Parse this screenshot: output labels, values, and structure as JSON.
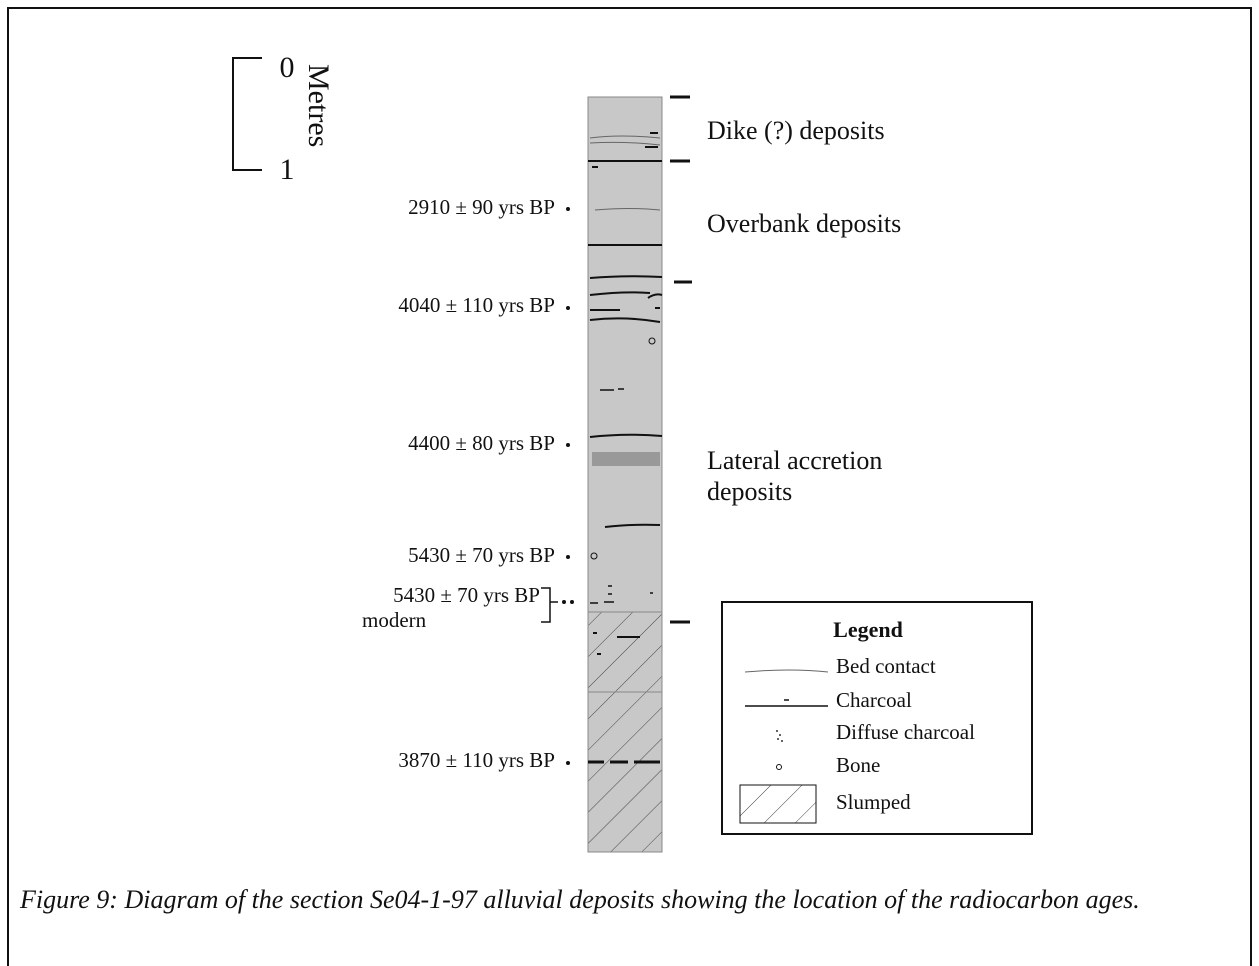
{
  "scale": {
    "top": "0",
    "bottom": "1",
    "unit": "Metres"
  },
  "ages": [
    "2910 ± 90 yrs BP",
    "4040 ± 110 yrs BP",
    "4400 ± 80 yrs BP",
    "5430 ± 70 yrs BP",
    "5430 ± 70 yrs BP",
    "modern",
    "3870 ± 110 yrs BP"
  ],
  "units": [
    {
      "lines": [
        "Dike (?) deposits"
      ]
    },
    {
      "lines": [
        "Overbank deposits"
      ]
    },
    {
      "lines": [
        "Lateral accretion",
        "deposits"
      ]
    }
  ],
  "legend": {
    "title": "Legend",
    "items": [
      "Bed contact",
      "Charcoal",
      "Diffuse charcoal",
      "Bone",
      "Slumped"
    ]
  },
  "caption": "Figure 9: Diagram of the section Se04-1-97 alluvial deposits showing the location of the radiocarbon ages."
}
